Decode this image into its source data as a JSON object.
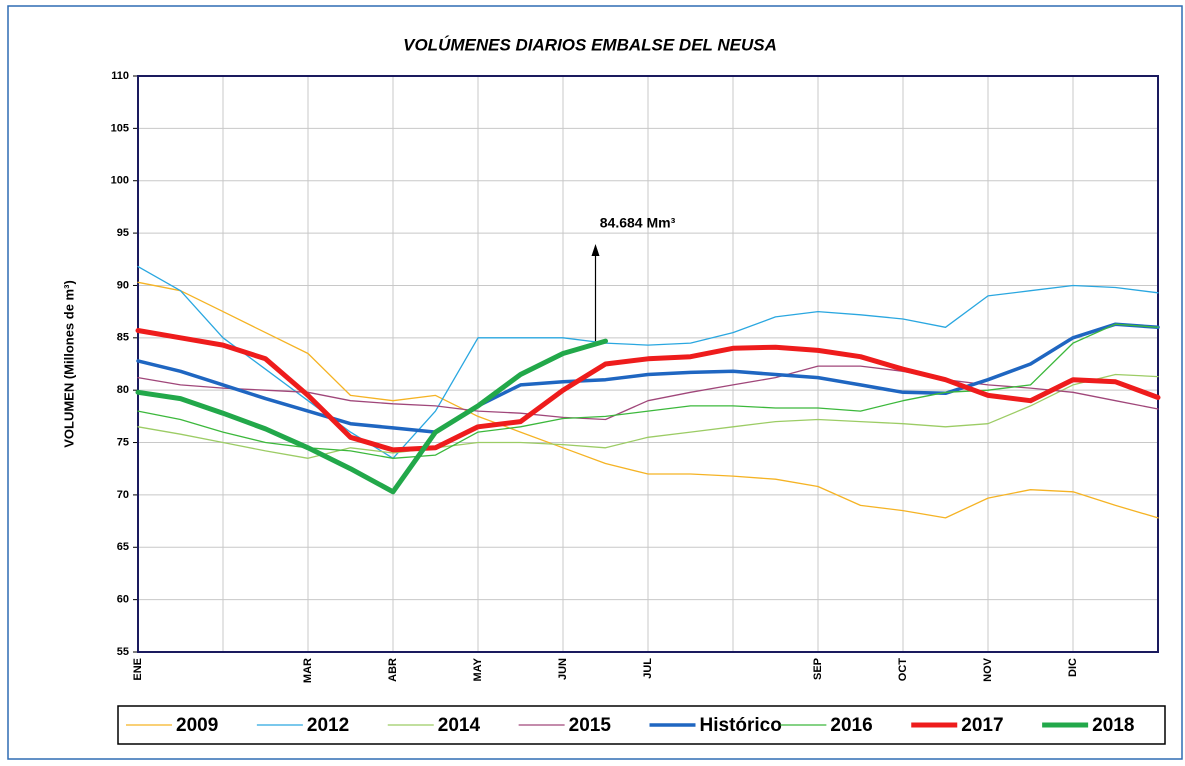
{
  "chart_data": {
    "type": "line",
    "title": "VOLÚMENES DIARIOS EMBALSE DEL NEUSA",
    "y_label": "VOLUMEN (Millones de m³)",
    "annotation": "84.684 Mm³",
    "categories": [
      "ENE",
      null,
      null,
      null,
      "MAR",
      null,
      "ABR",
      null,
      "MAY",
      null,
      "JUN",
      null,
      "JUL",
      null,
      null,
      null,
      "SEP",
      null,
      "OCT",
      null,
      "NOV",
      null,
      "DIC",
      null,
      null
    ],
    "ylim": [
      55,
      110
    ],
    "yticks": [
      55,
      60,
      65,
      70,
      75,
      80,
      85,
      90,
      95,
      100,
      105,
      110
    ],
    "grid": true,
    "legend": "bottom",
    "series": [
      {
        "name": "2009",
        "color": "#f5b324",
        "linewidth": 1.3,
        "values": [
          90.3,
          89.5,
          87.5,
          85.5,
          83.5,
          79.5,
          79,
          79.5,
          77.5,
          76,
          74.5,
          73,
          72,
          72,
          71.8,
          71.5,
          70.8,
          69,
          68.5,
          67.8,
          69.7,
          70.5,
          70.3,
          69,
          67.8
        ]
      },
      {
        "name": "2012",
        "color": "#2aa7e0",
        "linewidth": 1.3,
        "values": [
          91.8,
          89.5,
          85,
          82,
          79,
          76,
          73.5,
          78,
          85,
          85,
          85,
          84.5,
          84.3,
          84.5,
          85.5,
          87,
          87.5,
          87.2,
          86.8,
          86,
          89,
          89.5,
          90,
          89.8,
          89.3
        ]
      },
      {
        "name": "2014",
        "color": "#9ccc65",
        "linewidth": 1.3,
        "values": [
          76.5,
          75.8,
          75,
          74.2,
          73.5,
          74.5,
          74,
          74.5,
          75,
          75,
          74.8,
          74.5,
          75.5,
          76,
          76.5,
          77,
          77.2,
          77,
          76.8,
          76.5,
          76.8,
          78.5,
          80.5,
          81.5,
          81.3
        ]
      },
      {
        "name": "2015",
        "color": "#a0477a",
        "linewidth": 1.3,
        "values": [
          81.2,
          80.5,
          80.2,
          80,
          79.8,
          79,
          78.7,
          78.5,
          78,
          77.8,
          77.4,
          77.2,
          79,
          79.8,
          80.5,
          81.2,
          82.3,
          82.3,
          81.8,
          81,
          80.5,
          80.2,
          79.8,
          79,
          78.2
        ]
      },
      {
        "name": "Histórico",
        "color": "#1f66c1",
        "linewidth": 3.5,
        "values": [
          82.8,
          81.8,
          80.5,
          79.2,
          78,
          76.8,
          76.4,
          76,
          78.5,
          80.5,
          80.8,
          81,
          81.5,
          81.7,
          81.8,
          81.5,
          81.2,
          80.5,
          79.8,
          79.7,
          81,
          82.5,
          85,
          86.3,
          86
        ]
      },
      {
        "name": "2016",
        "color": "#3cb83c",
        "linewidth": 1.3,
        "values": [
          78,
          77.2,
          76,
          75,
          74.5,
          74.2,
          73.5,
          73.8,
          76,
          76.5,
          77.3,
          77.5,
          78,
          78.5,
          78.5,
          78.3,
          78.3,
          78,
          79,
          79.8,
          80,
          80.5,
          84.5,
          86.3,
          86
        ]
      },
      {
        "name": "2017",
        "color": "#ee1c1c",
        "linewidth": 5,
        "values": [
          85.7,
          85,
          84.3,
          83,
          79.5,
          75.5,
          74.3,
          74.5,
          76.5,
          77,
          80,
          82.5,
          83,
          83.2,
          84,
          84.1,
          83.8,
          83.2,
          82,
          81,
          79.5,
          79,
          81,
          80.8,
          79.3
        ]
      },
      {
        "name": "2018",
        "color": "#22a84a",
        "linewidth": 5,
        "values": [
          79.8,
          79.2,
          77.8,
          76.3,
          74.5,
          72.5,
          70.3,
          76,
          78.5,
          81.5,
          83.5,
          84.684,
          null,
          null,
          null,
          null,
          null,
          null,
          null,
          null,
          null,
          null,
          null,
          null,
          null
        ]
      }
    ]
  }
}
